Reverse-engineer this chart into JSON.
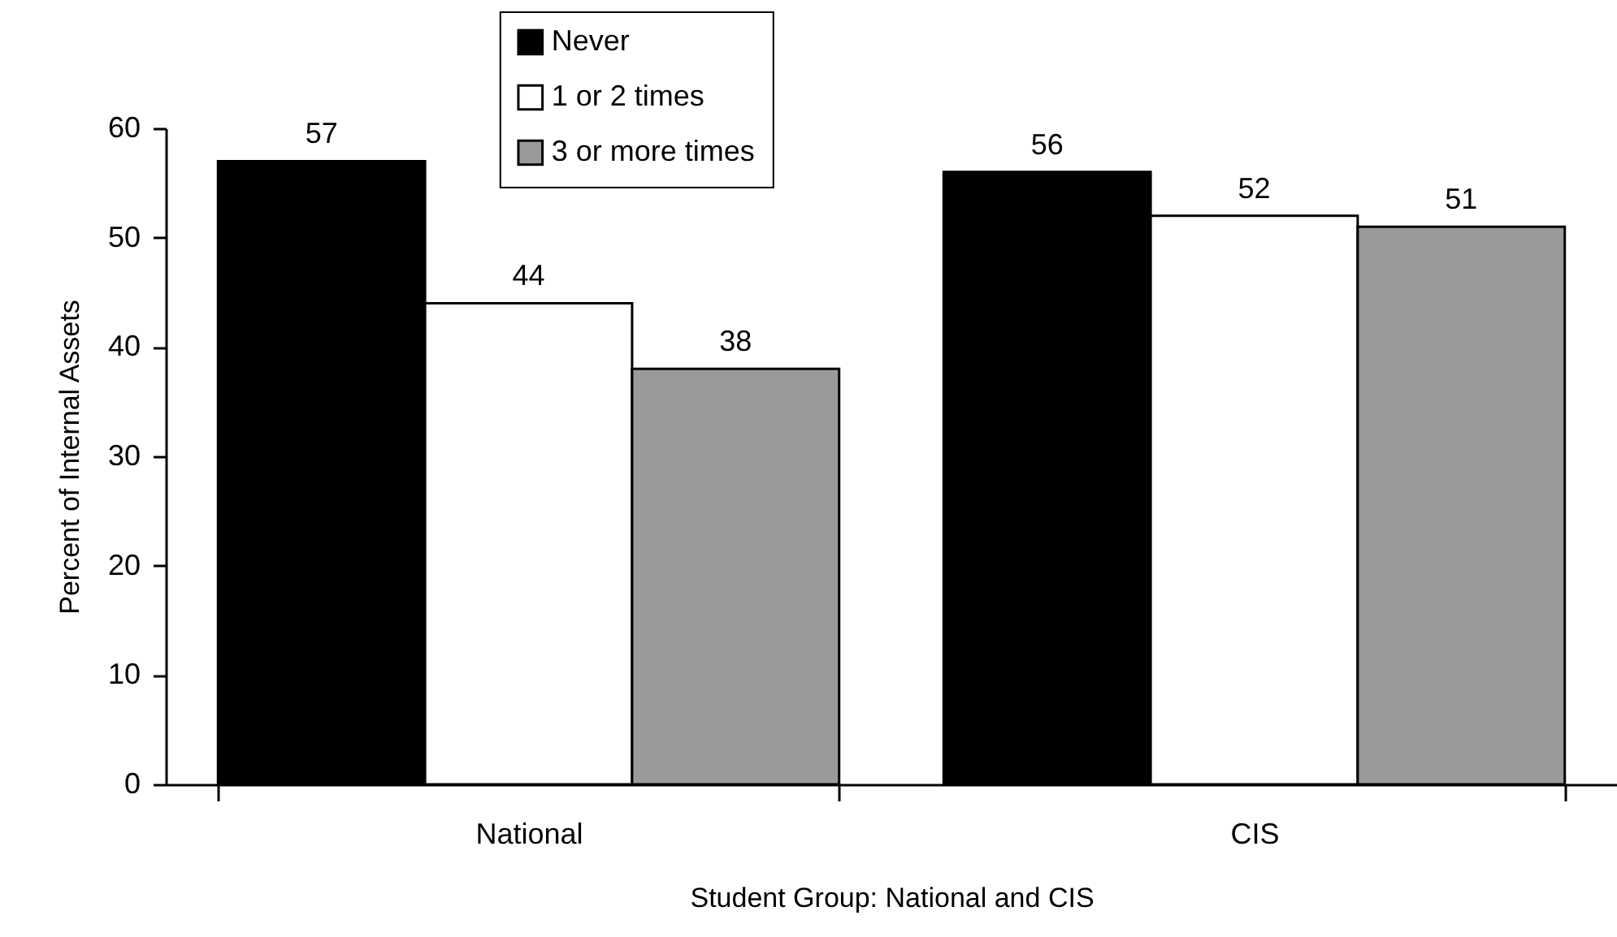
{
  "chart_data": {
    "type": "bar",
    "xlabel": "Student Group:  National and CIS",
    "ylabel": "Percent of Internal Assets",
    "categories": [
      "National",
      "CIS"
    ],
    "series": [
      {
        "name": "Never",
        "color": "#000000",
        "values": [
          57,
          56
        ]
      },
      {
        "name": "1 or 2 times",
        "color": "#ffffff",
        "values": [
          44,
          52
        ]
      },
      {
        "name": "3 or more times",
        "color": "#9a9a9a",
        "values": [
          38,
          51
        ]
      }
    ],
    "ylim": [
      0,
      60
    ],
    "yticks": [
      0,
      10,
      20,
      30,
      40,
      50,
      60
    ],
    "data_labels": true,
    "legend": "top",
    "grid": false
  }
}
